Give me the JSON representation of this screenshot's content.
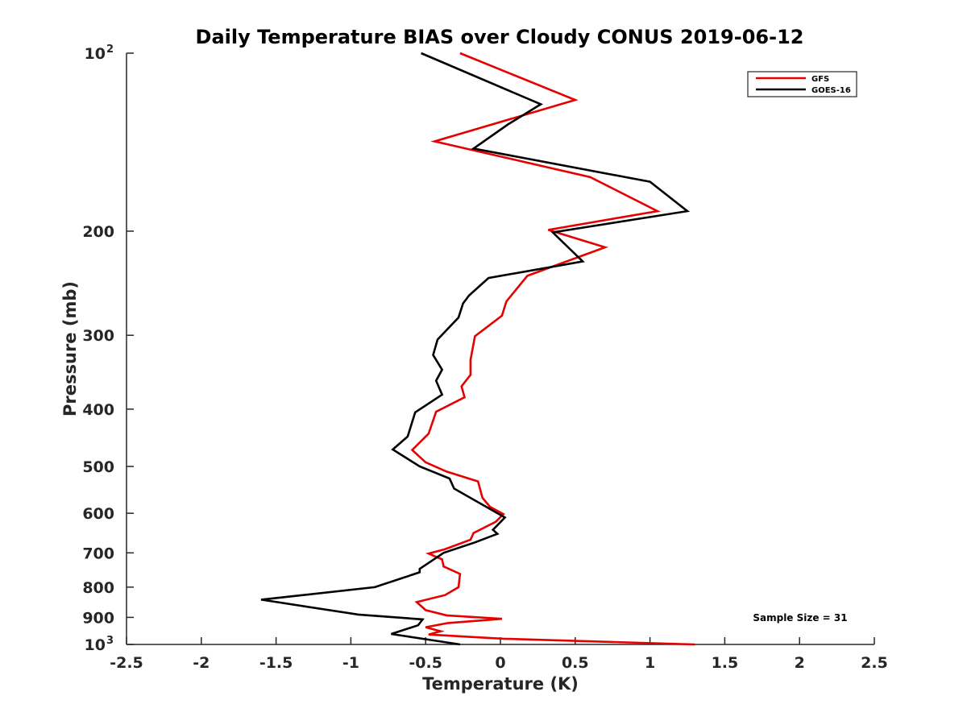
{
  "chart_data": {
    "type": "line",
    "title": "Daily Temperature BIAS over Cloudy CONUS 2019-06-12",
    "xlabel": "Temperature (K)",
    "ylabel": "Pressure (mb)",
    "xlim": [
      -2.5,
      2.5
    ],
    "ylim": [
      100,
      1000
    ],
    "y_scale": "log",
    "y_reversed": true,
    "grid": false,
    "legend_position": "top-right",
    "x_ticks": [
      {
        "value": -2.5,
        "label": "-2.5"
      },
      {
        "value": -2,
        "label": "-2"
      },
      {
        "value": -1.5,
        "label": "-1.5"
      },
      {
        "value": -1,
        "label": "-1"
      },
      {
        "value": -0.5,
        "label": "-0.5"
      },
      {
        "value": 0,
        "label": "0"
      },
      {
        "value": 0.5,
        "label": "0.5"
      },
      {
        "value": 1,
        "label": "1"
      },
      {
        "value": 1.5,
        "label": "1.5"
      },
      {
        "value": 2,
        "label": "2"
      },
      {
        "value": 2.5,
        "label": "2.5"
      }
    ],
    "y_ticks": [
      {
        "value": 100,
        "label": "10",
        "exp": "2"
      },
      {
        "value": 200,
        "label": "200"
      },
      {
        "value": 300,
        "label": "300"
      },
      {
        "value": 400,
        "label": "400"
      },
      {
        "value": 500,
        "label": "500"
      },
      {
        "value": 600,
        "label": "600"
      },
      {
        "value": 700,
        "label": "700"
      },
      {
        "value": 800,
        "label": "800"
      },
      {
        "value": 900,
        "label": "900"
      },
      {
        "value": 1000,
        "label": "10",
        "exp": "3"
      }
    ],
    "series": [
      {
        "name": "GFS",
        "color": "#e60000",
        "points": [
          [
            -0.27,
            100
          ],
          [
            0.5,
            120
          ],
          [
            -0.44,
            141
          ],
          [
            0.6,
            162
          ],
          [
            1.05,
            185
          ],
          [
            0.32,
            199
          ],
          [
            0.7,
            213
          ],
          [
            0.18,
            238
          ],
          [
            0.04,
            263
          ],
          [
            0.01,
            278
          ],
          [
            -0.17,
            301
          ],
          [
            -0.2,
            330
          ],
          [
            -0.2,
            350
          ],
          [
            -0.26,
            366
          ],
          [
            -0.24,
            382
          ],
          [
            -0.43,
            404
          ],
          [
            -0.48,
            440
          ],
          [
            -0.59,
            469
          ],
          [
            -0.5,
            492
          ],
          [
            -0.36,
            510
          ],
          [
            -0.15,
            530
          ],
          [
            -0.12,
            565
          ],
          [
            -0.07,
            585
          ],
          [
            0.02,
            602
          ],
          [
            -0.03,
            620
          ],
          [
            -0.18,
            648
          ],
          [
            -0.2,
            665
          ],
          [
            -0.37,
            690
          ],
          [
            -0.48,
            702
          ],
          [
            -0.39,
            718
          ],
          [
            -0.38,
            738
          ],
          [
            -0.27,
            760
          ],
          [
            -0.28,
            800
          ],
          [
            -0.37,
            825
          ],
          [
            -0.56,
            848
          ],
          [
            -0.5,
            875
          ],
          [
            -0.36,
            893
          ],
          [
            0.01,
            905
          ],
          [
            -0.35,
            920
          ],
          [
            -0.5,
            935
          ],
          [
            -0.4,
            950
          ],
          [
            -0.48,
            962
          ],
          [
            0.02,
            978
          ],
          [
            1.3,
            1000
          ]
        ]
      },
      {
        "name": "GOES-16",
        "color": "#000000",
        "points": [
          [
            -0.53,
            100
          ],
          [
            0.27,
            122
          ],
          [
            0.05,
            132
          ],
          [
            -0.18,
            145
          ],
          [
            1.0,
            165
          ],
          [
            1.25,
            185
          ],
          [
            0.35,
            201
          ],
          [
            0.55,
            225
          ],
          [
            -0.08,
            240
          ],
          [
            -0.21,
            257
          ],
          [
            -0.25,
            265
          ],
          [
            -0.28,
            280
          ],
          [
            -0.42,
            305
          ],
          [
            -0.45,
            324
          ],
          [
            -0.39,
            343
          ],
          [
            -0.43,
            358
          ],
          [
            -0.39,
            378
          ],
          [
            -0.57,
            405
          ],
          [
            -0.62,
            445
          ],
          [
            -0.72,
            468
          ],
          [
            -0.54,
            500
          ],
          [
            -0.34,
            524
          ],
          [
            -0.31,
            545
          ],
          [
            0.03,
            610
          ],
          [
            -0.05,
            640
          ],
          [
            -0.02,
            650
          ],
          [
            -0.17,
            672
          ],
          [
            -0.38,
            700
          ],
          [
            -0.54,
            745
          ],
          [
            -0.54,
            755
          ],
          [
            -0.84,
            800
          ],
          [
            -1.6,
            840
          ],
          [
            -0.95,
            890
          ],
          [
            -0.52,
            907
          ],
          [
            -0.55,
            928
          ],
          [
            -0.73,
            960
          ],
          [
            -0.27,
            1000
          ]
        ]
      }
    ],
    "annotations": [
      "Sample Size = 31"
    ]
  }
}
